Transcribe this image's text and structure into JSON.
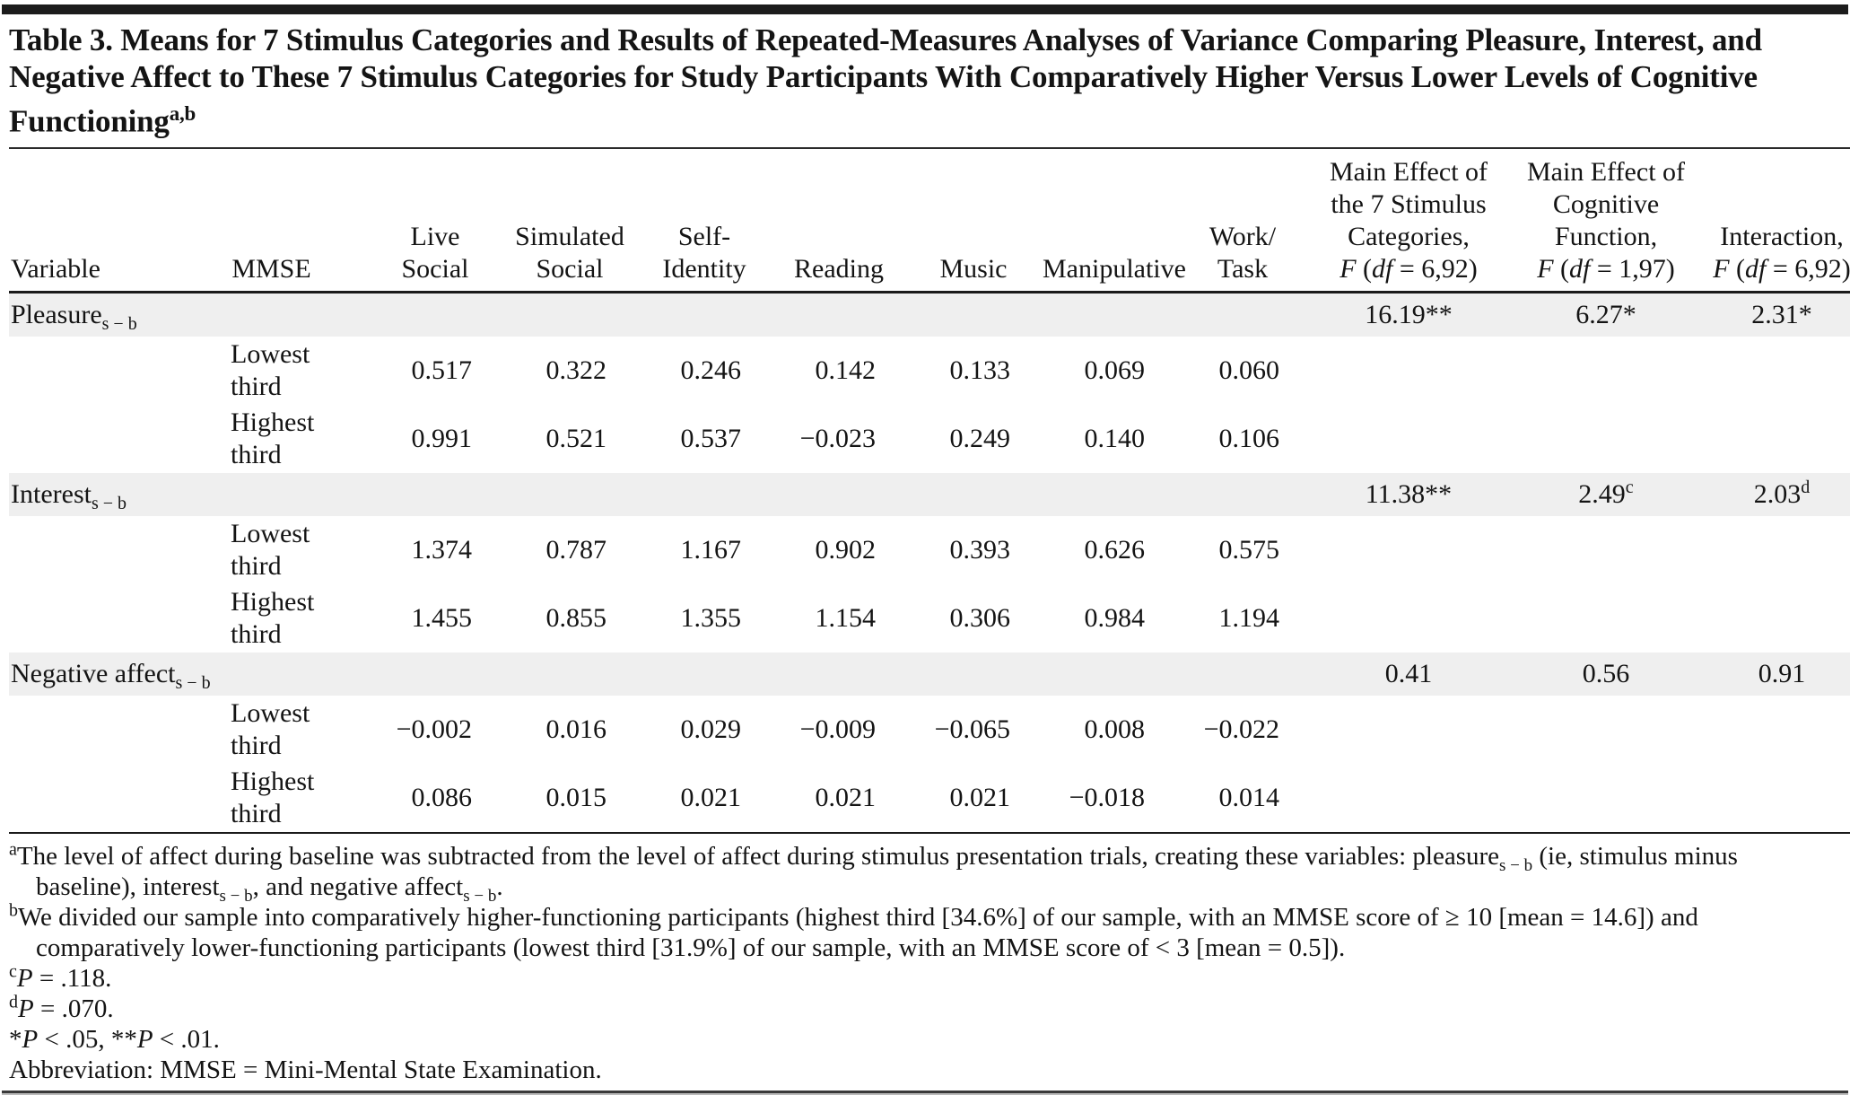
{
  "title": {
    "text": "Table 3. Means for 7 Stimulus Categories and Results of Repeated-Measures Analyses of Variance Comparing Pleasure, Interest, and Negative Affect to These 7 Stimulus Categories for Study Participants With Comparatively Higher Versus Lower Levels of Cognitive Functioning",
    "superscript": "a,b"
  },
  "colors": {
    "row_shading": "#efefef",
    "rule": "#1a1a1a",
    "text": "#141414"
  },
  "table": {
    "header": [
      {
        "name": "variable",
        "lines": [
          [
            {
              "t": "Variable"
            }
          ]
        ]
      },
      {
        "name": "mmse",
        "lines": [
          [
            {
              "t": "MMSE"
            }
          ]
        ]
      },
      {
        "name": "live-social",
        "lines": [
          [
            {
              "t": "Live"
            }
          ],
          [
            {
              "t": "Social"
            }
          ]
        ]
      },
      {
        "name": "simulated-social",
        "lines": [
          [
            {
              "t": "Simulated"
            }
          ],
          [
            {
              "t": "Social"
            }
          ]
        ]
      },
      {
        "name": "self-identity",
        "lines": [
          [
            {
              "t": "Self-"
            }
          ],
          [
            {
              "t": "Identity"
            }
          ]
        ]
      },
      {
        "name": "reading",
        "lines": [
          [
            {
              "t": "Reading"
            }
          ]
        ]
      },
      {
        "name": "music",
        "lines": [
          [
            {
              "t": "Music"
            }
          ]
        ]
      },
      {
        "name": "manipulative",
        "lines": [
          [
            {
              "t": "Manipulative"
            }
          ]
        ]
      },
      {
        "name": "work-task",
        "lines": [
          [
            {
              "t": "Work/"
            }
          ],
          [
            {
              "t": "Task"
            }
          ]
        ]
      },
      {
        "name": "main-effect-stimulus",
        "lines": [
          [
            {
              "t": "Main Effect of"
            }
          ],
          [
            {
              "t": "the 7 Stimulus"
            }
          ],
          [
            {
              "t": "Categories,"
            }
          ],
          [
            {
              "i": "F"
            },
            {
              "t": " ("
            },
            {
              "i": "df"
            },
            {
              "t": " = 6,92)"
            }
          ]
        ]
      },
      {
        "name": "main-effect-cognitive",
        "lines": [
          [
            {
              "t": "Main Effect of"
            }
          ],
          [
            {
              "t": "Cognitive"
            }
          ],
          [
            {
              "t": "Function,"
            }
          ],
          [
            {
              "i": "F"
            },
            {
              "t": " ("
            },
            {
              "i": "df"
            },
            {
              "t": " = 1,97)"
            }
          ]
        ]
      },
      {
        "name": "interaction",
        "lines": [
          [
            {
              "t": "Interaction,"
            }
          ],
          [
            {
              "i": "F"
            },
            {
              "t": " ("
            },
            {
              "i": "df"
            },
            {
              "t": " = 6,92)"
            }
          ]
        ]
      }
    ],
    "rows": [
      {
        "type": "category",
        "variable": [
          {
            "t": "Pleasure"
          },
          {
            "sub": "s − b"
          }
        ],
        "stats": [
          [
            {
              "t": "16.19**"
            }
          ],
          [
            {
              "t": "6.27*"
            }
          ],
          [
            {
              "t": "2.31*"
            }
          ]
        ]
      },
      {
        "type": "data",
        "mmse": "Lowest third",
        "values": [
          "0.517",
          "0.322",
          "0.246",
          "0.142",
          "0.133",
          "0.069",
          "0.060"
        ]
      },
      {
        "type": "data",
        "mmse": "Highest third",
        "values": [
          "0.991",
          "0.521",
          "0.537",
          "−0.023",
          "0.249",
          "0.140",
          "0.106"
        ]
      },
      {
        "type": "category",
        "variable": [
          {
            "t": "Interest"
          },
          {
            "sub": "s − b"
          }
        ],
        "stats": [
          [
            {
              "t": "11.38**"
            }
          ],
          [
            {
              "t": "2.49"
            },
            {
              "sup": "c"
            }
          ],
          [
            {
              "t": "2.03"
            },
            {
              "sup": "d"
            }
          ]
        ]
      },
      {
        "type": "data",
        "mmse": "Lowest third",
        "values": [
          "1.374",
          "0.787",
          "1.167",
          "0.902",
          "0.393",
          "0.626",
          "0.575"
        ]
      },
      {
        "type": "data",
        "mmse": "Highest third",
        "values": [
          "1.455",
          "0.855",
          "1.355",
          "1.154",
          "0.306",
          "0.984",
          "1.194"
        ]
      },
      {
        "type": "category",
        "variable": [
          {
            "t": "Negative affect"
          },
          {
            "sub": "s − b"
          }
        ],
        "stats": [
          [
            {
              "t": "0.41"
            }
          ],
          [
            {
              "t": "0.56"
            }
          ],
          [
            {
              "t": "0.91"
            }
          ]
        ]
      },
      {
        "type": "data",
        "mmse": "Lowest third",
        "values": [
          "−0.002",
          "0.016",
          "0.029",
          "−0.009",
          "−0.065",
          "0.008",
          "−0.022"
        ]
      },
      {
        "type": "data",
        "mmse": "Highest third",
        "values": [
          "0.086",
          "0.015",
          "0.021",
          "0.021",
          "0.021",
          "−0.018",
          "0.014"
        ]
      }
    ]
  },
  "footnotes": [
    {
      "marker": "a",
      "segments": [
        {
          "t": "The level of affect during baseline was subtracted from the level of affect during stimulus presentation trials, creating these variables: pleasure"
        },
        {
          "sub": "s − b"
        },
        {
          "t": " (ie, stimulus minus baseline), interest"
        },
        {
          "sub": "s − b"
        },
        {
          "t": ", and negative affect"
        },
        {
          "sub": "s − b"
        },
        {
          "t": "."
        }
      ]
    },
    {
      "marker": "b",
      "segments": [
        {
          "t": "We divided our sample into comparatively higher-functioning participants (highest third [34.6%] of our sample, with an MMSE score of ≥ 10 [mean = 14.6]) and comparatively lower-functioning participants (lowest third [31.9%] of our sample, with an MMSE score of < 3 [mean = 0.5])."
        }
      ]
    },
    {
      "marker": "c",
      "segments": [
        {
          "i": "P"
        },
        {
          "t": " = .118."
        }
      ]
    },
    {
      "marker": "d",
      "segments": [
        {
          "i": "P"
        },
        {
          "t": " = .070."
        }
      ]
    },
    {
      "marker": "",
      "segments": [
        {
          "t": "*"
        },
        {
          "i": "P"
        },
        {
          "t": " < .05, **"
        },
        {
          "i": "P"
        },
        {
          "t": " < .01."
        }
      ]
    },
    {
      "marker": "",
      "segments": [
        {
          "t": "Abbreviation: MMSE = Mini-Mental State Examination."
        }
      ]
    }
  ]
}
